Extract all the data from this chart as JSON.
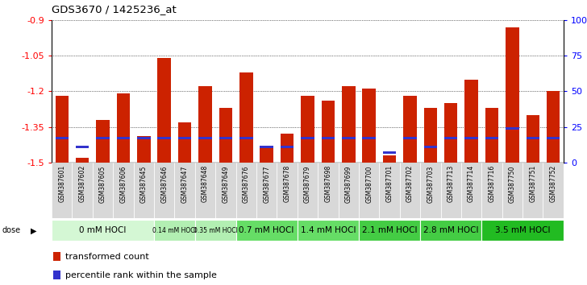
{
  "title": "GDS3670 / 1425236_at",
  "samples": [
    "GSM387601",
    "GSM387602",
    "GSM387605",
    "GSM387606",
    "GSM387645",
    "GSM387646",
    "GSM387647",
    "GSM387648",
    "GSM387649",
    "GSM387676",
    "GSM387677",
    "GSM387678",
    "GSM387679",
    "GSM387698",
    "GSM387699",
    "GSM387700",
    "GSM387701",
    "GSM387702",
    "GSM387703",
    "GSM387713",
    "GSM387714",
    "GSM387716",
    "GSM387750",
    "GSM387751",
    "GSM387752"
  ],
  "transformed_count": [
    -1.22,
    -1.48,
    -1.32,
    -1.21,
    -1.39,
    -1.06,
    -1.33,
    -1.18,
    -1.27,
    -1.12,
    -1.43,
    -1.38,
    -1.22,
    -1.24,
    -1.18,
    -1.19,
    -1.47,
    -1.22,
    -1.27,
    -1.25,
    -1.15,
    -1.27,
    -0.93,
    -1.3,
    -1.2
  ],
  "percentile_rank": [
    17,
    11,
    17,
    17,
    17,
    17,
    17,
    17,
    17,
    17,
    11,
    11,
    17,
    17,
    17,
    17,
    7,
    17,
    11,
    17,
    17,
    17,
    24,
    17,
    17
  ],
  "dose_groups": [
    {
      "label": "0 mM HOCl",
      "start": 0,
      "end": 5,
      "color": "#d4f7d4"
    },
    {
      "label": "0.14 mM HOCl",
      "start": 5,
      "end": 7,
      "color": "#b2efb2"
    },
    {
      "label": "0.35 mM HOCl",
      "start": 7,
      "end": 9,
      "color": "#b2efb2"
    },
    {
      "label": "0.7 mM HOCl",
      "start": 9,
      "end": 12,
      "color": "#66dd66"
    },
    {
      "label": "1.4 mM HOCl",
      "start": 12,
      "end": 15,
      "color": "#66dd66"
    },
    {
      "label": "2.1 mM HOCl",
      "start": 15,
      "end": 18,
      "color": "#44cc44"
    },
    {
      "label": "2.8 mM HOCl",
      "start": 18,
      "end": 21,
      "color": "#44cc44"
    },
    {
      "label": "3.5 mM HOCl",
      "start": 21,
      "end": 25,
      "color": "#22bb22"
    }
  ],
  "ymin": -1.5,
  "ymax": -0.9,
  "yticks": [
    -0.9,
    -1.05,
    -1.2,
    -1.35,
    -1.5
  ],
  "ytick_labels": [
    "-0.9",
    "-1.05",
    "-1.2",
    "-1.35",
    "-1.5"
  ],
  "y2ticks": [
    0,
    25,
    50,
    75,
    100
  ],
  "y2tick_labels": [
    "0",
    "25",
    "50",
    "75",
    "100%"
  ],
  "bar_color": "#cc2200",
  "percentile_color": "#3333cc",
  "bg_color": "#ffffff",
  "xticklabel_bg": "#d8d8d8"
}
